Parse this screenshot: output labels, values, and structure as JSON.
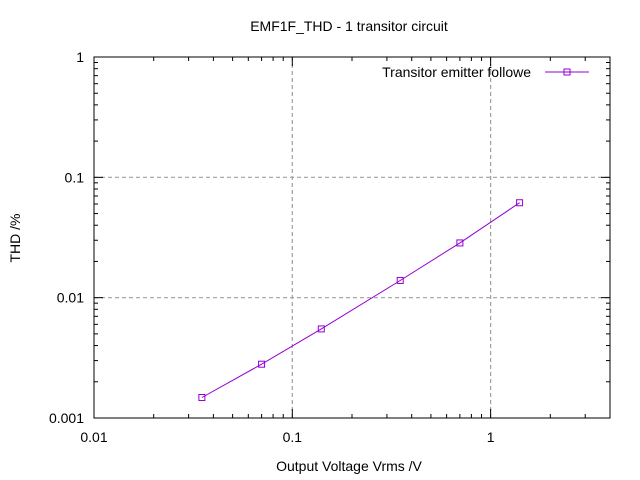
{
  "chart_data": {
    "type": "line",
    "title": "EMF1F_THD - 1 transitor circuit",
    "xlabel": "Output Voltage Vrms /V",
    "ylabel": "THD /%",
    "xscale": "log",
    "yscale": "log",
    "xlim": [
      0.01,
      4
    ],
    "ylim": [
      0.001,
      1
    ],
    "x_ticks": [
      0.01,
      0.1,
      1
    ],
    "y_ticks": [
      0.001,
      0.01,
      0.1,
      1
    ],
    "x_tick_labels": [
      "0.01",
      "0.1",
      "1"
    ],
    "y_tick_labels": [
      "0.001",
      "0.01",
      "0.1",
      "1"
    ],
    "grid": true,
    "legend_position": "top-right",
    "series": [
      {
        "name": "Transitor emitter followe",
        "color": "#9400d3",
        "marker": "square",
        "x": [
          0.035,
          0.07,
          0.14,
          0.35,
          0.7,
          1.4
        ],
        "y": [
          0.00148,
          0.0028,
          0.0055,
          0.0139,
          0.0285,
          0.0615
        ]
      }
    ]
  }
}
